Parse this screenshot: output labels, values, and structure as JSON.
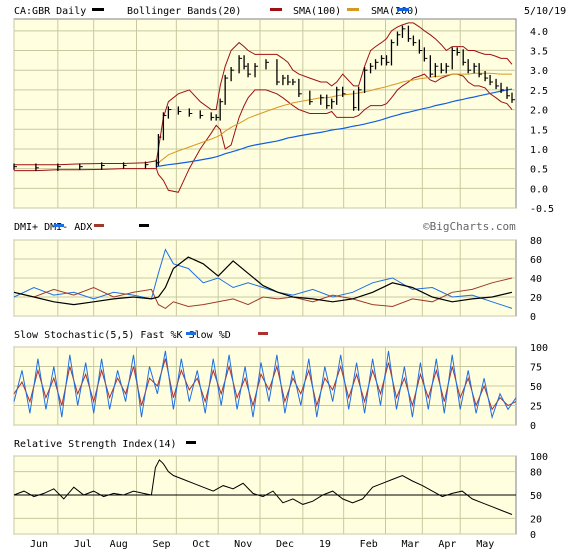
{
  "colors": {
    "panel_bg": "#FFFFE0",
    "grid": "#C8C8A0",
    "price": "#000000",
    "bollinger": "#A01010",
    "sma100": "#D89820",
    "sma200": "#1060E0",
    "dmi_plus": "#1E6FE0",
    "dmi_minus": "#A03A2A",
    "adx": "#000000",
    "fast_k": "#1E6FE0",
    "slow_d": "#B03030",
    "rsi": "#000000"
  },
  "header": {
    "symbol": "CA:GBR Daily",
    "legend": [
      {
        "label": "Bollinger Bands(20)",
        "color": "#A01010"
      },
      {
        "label": "SMA(100)",
        "color": "#D89820"
      },
      {
        "label": "SMA(200)",
        "color": "#1060E0"
      }
    ],
    "date": "5/10/19"
  },
  "watermark": "©BigCharts.com",
  "months": [
    "Jun",
    "Jul",
    "Aug",
    "Sep",
    "Oct",
    "Nov",
    "Dec",
    "19",
    "Feb",
    "Mar",
    "Apr",
    "May"
  ],
  "chart_data": [
    {
      "type": "line",
      "name": "price",
      "ylim": [
        -0.5,
        4.3
      ],
      "yticks": [
        "4.0",
        "3.5",
        "3.0",
        "2.5",
        "2.0",
        "1.5",
        "1.0",
        "0.5",
        "0.0",
        "-0.5"
      ],
      "x": [
        0,
        22,
        44,
        66,
        88,
        110,
        132,
        143,
        145,
        150,
        155,
        165,
        176,
        187,
        198,
        203,
        207,
        212,
        218,
        226,
        231,
        235,
        242,
        253,
        264,
        270,
        275,
        280,
        286,
        297,
        308,
        314,
        319,
        324,
        330,
        341,
        346,
        352,
        358,
        363,
        369,
        374,
        379,
        385,
        390,
        396,
        401,
        407,
        412,
        418,
        423,
        429,
        434,
        440,
        445,
        451,
        456,
        462,
        467,
        473,
        478,
        484,
        489,
        495,
        500
      ],
      "close": [
        0.55,
        0.52,
        0.55,
        0.55,
        0.58,
        0.58,
        0.6,
        0.65,
        1.3,
        1.85,
        2.0,
        1.95,
        1.9,
        1.85,
        1.8,
        1.8,
        2.2,
        2.8,
        3.0,
        3.3,
        3.1,
        2.9,
        3.1,
        3.2,
        2.7,
        2.8,
        2.7,
        2.7,
        2.4,
        2.2,
        2.3,
        2.1,
        2.2,
        2.5,
        2.4,
        2.05,
        2.5,
        3.0,
        3.1,
        3.2,
        3.3,
        3.2,
        3.7,
        3.9,
        4.05,
        3.8,
        3.7,
        3.5,
        3.3,
        2.9,
        3.1,
        3.0,
        3.1,
        3.5,
        3.45,
        3.2,
        3.0,
        3.1,
        2.9,
        2.8,
        2.7,
        2.6,
        2.5,
        2.35,
        2.25
      ],
      "bb_upper": [
        0.6,
        0.6,
        0.6,
        0.62,
        0.63,
        0.63,
        0.65,
        0.7,
        1.0,
        1.8,
        2.2,
        2.4,
        2.5,
        2.2,
        2.0,
        2.0,
        2.6,
        3.1,
        3.5,
        3.7,
        3.6,
        3.5,
        3.4,
        3.4,
        3.4,
        3.3,
        3.2,
        3.0,
        2.9,
        2.8,
        2.7,
        2.7,
        2.6,
        2.7,
        2.9,
        2.6,
        2.6,
        3.1,
        3.5,
        3.6,
        3.7,
        3.8,
        4.0,
        4.1,
        4.15,
        4.2,
        4.2,
        4.1,
        4.0,
        3.9,
        3.8,
        3.65,
        3.5,
        3.6,
        3.6,
        3.6,
        3.5,
        3.5,
        3.45,
        3.4,
        3.4,
        3.35,
        3.3,
        3.3,
        3.15
      ],
      "bb_lower": [
        0.45,
        0.45,
        0.47,
        0.47,
        0.48,
        0.5,
        0.5,
        0.5,
        0.35,
        0.2,
        -0.05,
        -0.1,
        0.5,
        1.0,
        1.4,
        1.6,
        1.5,
        1.0,
        1.1,
        1.8,
        2.1,
        2.3,
        2.5,
        2.5,
        2.4,
        2.3,
        2.2,
        2.1,
        2.0,
        1.9,
        1.9,
        1.9,
        1.95,
        1.8,
        1.8,
        1.8,
        1.85,
        2.0,
        2.1,
        2.1,
        2.1,
        2.15,
        2.3,
        2.5,
        2.6,
        2.7,
        2.8,
        2.85,
        2.9,
        2.75,
        2.7,
        2.8,
        2.85,
        2.9,
        2.9,
        2.85,
        2.7,
        2.6,
        2.6,
        2.55,
        2.4,
        2.3,
        2.2,
        2.15,
        2.0
      ],
      "sma100": [
        null,
        null,
        null,
        null,
        null,
        null,
        null,
        0.6,
        0.65,
        0.75,
        0.85,
        0.95,
        1.05,
        1.15,
        1.25,
        1.3,
        1.35,
        1.45,
        1.55,
        1.65,
        1.72,
        1.78,
        1.85,
        1.95,
        2.05,
        2.1,
        2.13,
        2.17,
        2.2,
        2.25,
        2.3,
        2.3,
        2.32,
        2.35,
        2.37,
        2.4,
        2.42,
        2.45,
        2.48,
        2.52,
        2.55,
        2.58,
        2.62,
        2.66,
        2.7,
        2.73,
        2.75,
        2.78,
        2.8,
        2.82,
        2.84,
        2.85,
        2.87,
        2.9,
        2.9,
        2.9,
        2.9,
        2.92,
        2.92,
        2.92,
        2.92,
        2.91,
        2.9,
        2.9,
        2.9
      ],
      "sma200": [
        null,
        null,
        null,
        null,
        null,
        null,
        null,
        0.55,
        0.56,
        0.58,
        0.6,
        0.63,
        0.67,
        0.72,
        0.77,
        0.8,
        0.83,
        0.88,
        0.92,
        0.98,
        1.02,
        1.06,
        1.1,
        1.15,
        1.2,
        1.24,
        1.28,
        1.3,
        1.33,
        1.38,
        1.42,
        1.45,
        1.48,
        1.5,
        1.52,
        1.58,
        1.6,
        1.63,
        1.67,
        1.7,
        1.74,
        1.78,
        1.82,
        1.86,
        1.9,
        1.93,
        1.96,
        2.0,
        2.03,
        2.06,
        2.1,
        2.13,
        2.16,
        2.2,
        2.23,
        2.26,
        2.29,
        2.32,
        2.35,
        2.38,
        2.41,
        2.44,
        2.47,
        2.5,
        2.52
      ]
    },
    {
      "type": "line",
      "name": "dmi",
      "title": "DMI+ DMI- ADX",
      "ylim": [
        0,
        80
      ],
      "yticks": [
        "80",
        "60",
        "40",
        "20",
        "0"
      ],
      "x": [
        0,
        20,
        40,
        60,
        80,
        100,
        120,
        138,
        145,
        152,
        160,
        175,
        190,
        205,
        220,
        235,
        250,
        265,
        280,
        300,
        320,
        340,
        360,
        380,
        400,
        420,
        440,
        460,
        480,
        500
      ],
      "dmi_plus": [
        20,
        30,
        22,
        25,
        18,
        25,
        22,
        18,
        45,
        70,
        55,
        50,
        35,
        40,
        30,
        35,
        30,
        25,
        22,
        28,
        20,
        25,
        35,
        40,
        28,
        30,
        20,
        22,
        15,
        8
      ],
      "dmi_minus": [
        25,
        20,
        28,
        22,
        30,
        20,
        25,
        28,
        12,
        8,
        15,
        10,
        12,
        15,
        18,
        12,
        20,
        18,
        20,
        15,
        22,
        18,
        12,
        10,
        18,
        15,
        25,
        28,
        35,
        40
      ],
      "adx": [
        25,
        20,
        15,
        12,
        15,
        18,
        20,
        18,
        20,
        30,
        50,
        62,
        55,
        42,
        58,
        45,
        32,
        25,
        20,
        18,
        15,
        18,
        25,
        35,
        30,
        20,
        15,
        18,
        20,
        25
      ]
    },
    {
      "type": "line",
      "name": "stochastic",
      "title": "Slow Stochastic(5,5) Fast %K Slow %D",
      "ylim": [
        0,
        100
      ],
      "yticks": [
        "100",
        "75",
        "50",
        "25",
        "0"
      ],
      "x": [
        0,
        8,
        16,
        24,
        32,
        40,
        48,
        56,
        64,
        72,
        80,
        88,
        96,
        104,
        112,
        120,
        128,
        136,
        144,
        152,
        160,
        168,
        176,
        184,
        192,
        200,
        208,
        216,
        224,
        232,
        240,
        248,
        256,
        264,
        272,
        280,
        288,
        296,
        304,
        312,
        320,
        328,
        336,
        344,
        352,
        360,
        368,
        376,
        384,
        392,
        400,
        408,
        416,
        424,
        432,
        440,
        448,
        456,
        464,
        472,
        480,
        488,
        496,
        504
      ],
      "fast_k": [
        30,
        70,
        15,
        85,
        20,
        75,
        10,
        90,
        25,
        80,
        15,
        85,
        20,
        70,
        30,
        90,
        10,
        75,
        40,
        95,
        20,
        85,
        30,
        70,
        15,
        85,
        25,
        90,
        20,
        75,
        10,
        80,
        30,
        90,
        15,
        70,
        25,
        85,
        10,
        75,
        30,
        90,
        20,
        80,
        15,
        85,
        25,
        95,
        20,
        75,
        10,
        80,
        20,
        85,
        15,
        90,
        20,
        70,
        15,
        60,
        10,
        40,
        20,
        35
      ],
      "slow_d": [
        40,
        55,
        30,
        70,
        35,
        60,
        25,
        75,
        40,
        65,
        30,
        70,
        35,
        60,
        40,
        75,
        25,
        60,
        50,
        85,
        35,
        70,
        45,
        60,
        30,
        70,
        40,
        75,
        35,
        60,
        25,
        65,
        45,
        75,
        30,
        60,
        40,
        70,
        25,
        60,
        45,
        75,
        35,
        65,
        30,
        70,
        40,
        80,
        35,
        60,
        25,
        65,
        35,
        70,
        30,
        75,
        35,
        60,
        25,
        50,
        20,
        35,
        25,
        30
      ]
    },
    {
      "type": "line",
      "name": "rsi",
      "title": "Relative Strength Index(14)",
      "ylim": [
        0,
        100
      ],
      "yticks": [
        "100",
        "80",
        "50",
        "20",
        "0"
      ],
      "reference": 50,
      "x": [
        0,
        10,
        20,
        30,
        40,
        50,
        60,
        70,
        80,
        90,
        100,
        110,
        120,
        130,
        138,
        142,
        146,
        150,
        155,
        160,
        170,
        180,
        190,
        200,
        210,
        220,
        230,
        240,
        250,
        260,
        270,
        280,
        290,
        300,
        310,
        320,
        330,
        340,
        350,
        360,
        370,
        380,
        390,
        400,
        410,
        420,
        430,
        440,
        450,
        460,
        470,
        480,
        490,
        500
      ],
      "values": [
        50,
        55,
        48,
        52,
        58,
        45,
        60,
        50,
        55,
        48,
        52,
        50,
        55,
        52,
        50,
        85,
        95,
        90,
        80,
        75,
        70,
        65,
        60,
        55,
        62,
        58,
        65,
        52,
        48,
        55,
        40,
        45,
        38,
        42,
        50,
        55,
        45,
        40,
        45,
        60,
        65,
        70,
        75,
        68,
        62,
        55,
        48,
        52,
        55,
        45,
        40,
        35,
        30,
        25
      ]
    }
  ]
}
